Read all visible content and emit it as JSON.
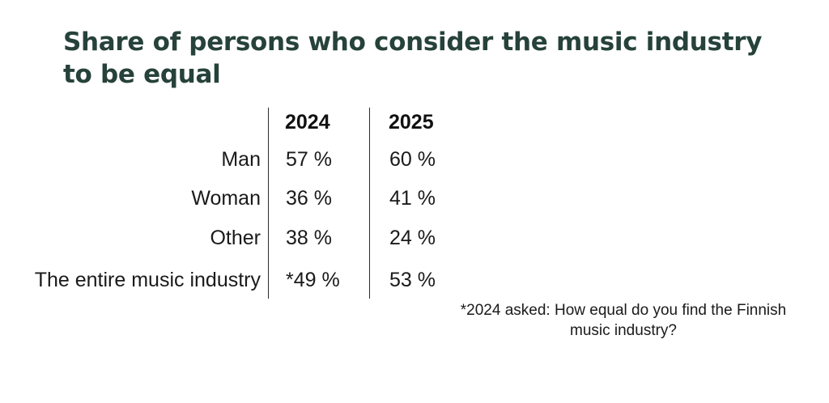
{
  "chart_data": {
    "type": "table",
    "title": "Share of persons who consider the music industry to be equal",
    "columns": [
      "2024",
      "2025"
    ],
    "rows": [
      {
        "label": "Man",
        "values": [
          "57 %",
          "60 %"
        ]
      },
      {
        "label": "Woman",
        "values": [
          "36 %",
          "41 %"
        ]
      },
      {
        "label": "Other",
        "values": [
          "38 %",
          "24 %"
        ]
      },
      {
        "label": "The entire music industry",
        "values": [
          "*49 %",
          "53 %"
        ]
      }
    ],
    "series": [
      {
        "name": "2024",
        "values": [
          57,
          36,
          38,
          49
        ]
      },
      {
        "name": "2025",
        "values": [
          60,
          41,
          24,
          53
        ]
      }
    ],
    "footnote": "*2024 asked: How equal do you find the Finnish music industry?"
  },
  "colors": {
    "title": "#26423a",
    "text": "#1a1a1a",
    "rule": "#2b2b2b"
  }
}
